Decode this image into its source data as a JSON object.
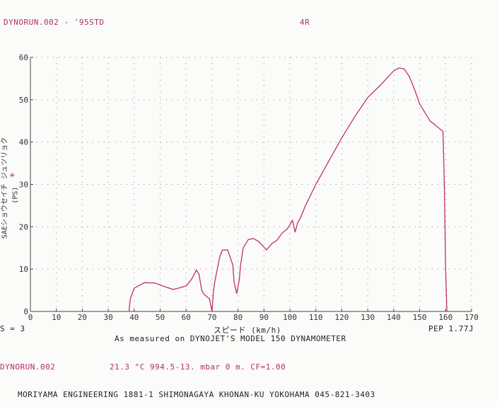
{
  "header": {
    "run_title": "DYNORUN.002 - '95STD",
    "gear": "4R"
  },
  "footer": {
    "smoothing": "S = 3",
    "version": "PEP 1.77J",
    "measured_note": "As measured on DYNOJET'S MODEL 150 DYNAMOMETER",
    "run_id": "DYNORUN.002",
    "conditions": "21.3 °C   994.5-13. mbar   0 m.   CF=1.00",
    "company": "MORIYAMA ENGINEERING 1881-1 SHIMONAGAYA KHONAN-KU YOKOHAMA 045-821-3403"
  },
  "chart_data": {
    "type": "line",
    "xlabel": "スピード (km/h)",
    "ylabel": "SAEショウセイチ ジュツリョク (PS)",
    "ylabel_marker": "*",
    "xlim": [
      0,
      170
    ],
    "ylim": [
      0,
      60
    ],
    "xticks": [
      0,
      10,
      20,
      30,
      40,
      50,
      60,
      70,
      80,
      90,
      100,
      110,
      120,
      130,
      140,
      150,
      160,
      170
    ],
    "yticks": [
      0,
      10,
      20,
      30,
      40,
      50,
      60
    ],
    "grid": true,
    "line_color": "#c0306e",
    "series": [
      {
        "x": [
          38,
          38.5,
          40,
          44,
          48,
          52,
          55,
          57,
          60,
          62,
          64,
          65,
          66,
          67,
          69,
          70,
          70.5,
          71,
          72,
          73,
          74,
          76,
          78,
          78.5,
          79.5,
          80.5,
          81,
          82,
          84,
          86,
          88,
          91,
          93,
          95,
          97,
          99,
          100,
          101,
          102,
          103,
          104,
          106,
          110,
          115,
          120,
          125,
          130,
          135,
          138,
          140,
          142,
          144,
          146,
          148,
          150,
          154,
          157,
          159,
          159.5,
          160,
          160.5
        ],
        "y": [
          0,
          3,
          5.5,
          6.8,
          6.7,
          5.8,
          5.2,
          5.5,
          6,
          7.5,
          9.8,
          8.7,
          5,
          4,
          3,
          0,
          4.5,
          6.8,
          10,
          13,
          14.5,
          14.5,
          11,
          7,
          4.2,
          7.5,
          11,
          15,
          17,
          17.2,
          16.5,
          14.5,
          16,
          16.8,
          18.5,
          19.5,
          20.5,
          21.5,
          18.7,
          21,
          22,
          25,
          30,
          35.5,
          41,
          46,
          50.5,
          53.5,
          55.5,
          56.8,
          57.5,
          57.3,
          55.5,
          52.5,
          49,
          45,
          43.5,
          42.5,
          30,
          10,
          0
        ]
      }
    ]
  }
}
